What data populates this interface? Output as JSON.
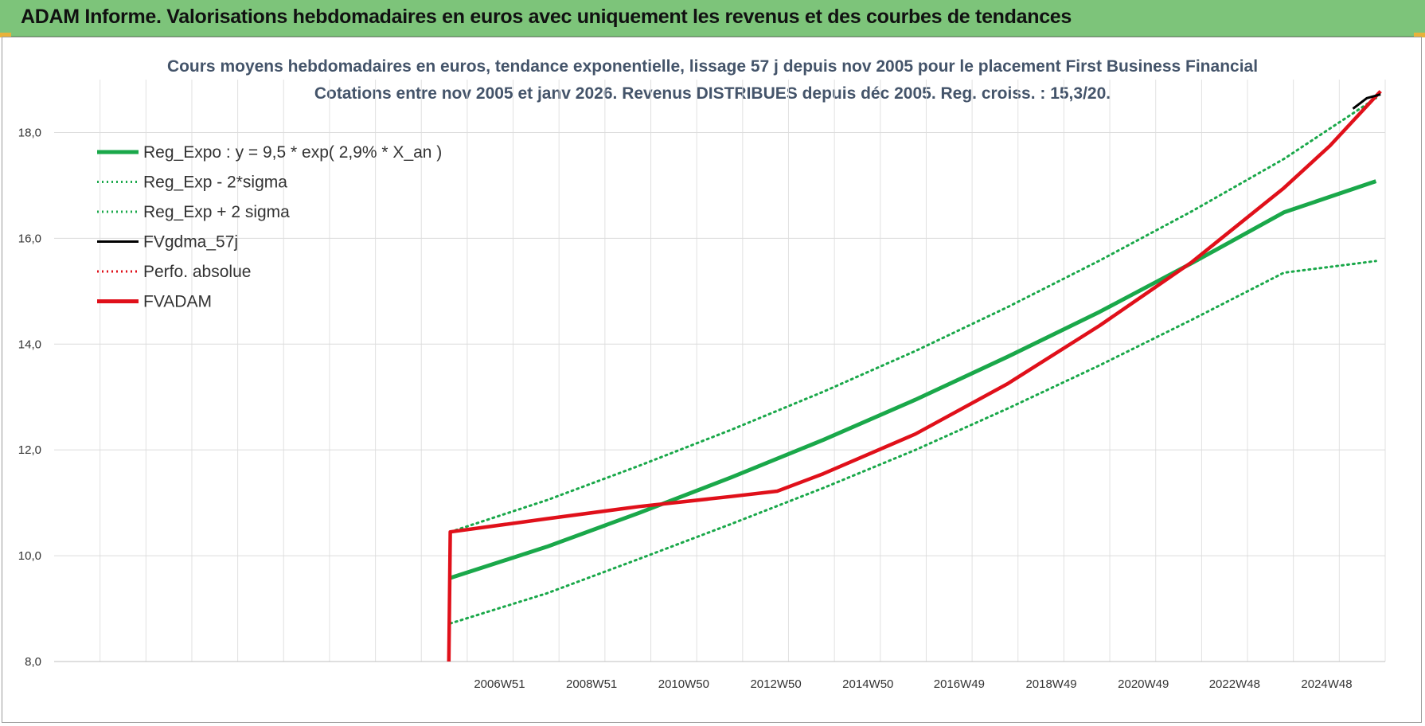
{
  "banner": {
    "title": "ADAM Informe. Valorisations hebdomadaires en euros avec uniquement les revenus et des courbes de tendances"
  },
  "colors": {
    "banner_bg": "#7dc47a",
    "reg_expo": "#1aa84a",
    "sigma_lines": "#1aa84a",
    "fvgdma": "#000000",
    "perfo": "#e0101a",
    "fvadam": "#e0101a",
    "title_text": "#44546a"
  },
  "chart_data": {
    "type": "line",
    "title": "Cours moyens hebdomadaires en euros, tendance exponentielle, lissage 57 j depuis nov 2005  pour le placement First Business Financial",
    "subtitle": "Cotations entre nov 2005 et janv 2026. Revenus DISTRIBUES depuis déc 2005.  Reg. croiss. : 15,3/20.",
    "xlabel": "",
    "ylabel": "",
    "ylim": [
      8.0,
      19.0
    ],
    "xlim": [
      1997.3,
      2026.2
    ],
    "y_ticks": [
      "8,0",
      "10,0",
      "12,0",
      "14,0",
      "16,0",
      "18,0"
    ],
    "y_tick_values": [
      8,
      10,
      12,
      14,
      16,
      18
    ],
    "x_tick_labels": [
      "2006W51",
      "2008W51",
      "2010W50",
      "2012W50",
      "2014W50",
      "2016W49",
      "2018W49",
      "2020W49",
      "2022W48",
      "2024W48"
    ],
    "x_tick_values": [
      2006.97,
      2008.97,
      2010.97,
      2012.97,
      2014.97,
      2016.95,
      2018.95,
      2020.95,
      2022.93,
      2024.93
    ],
    "grid": true,
    "legend_position": "top-left",
    "legend": [
      {
        "label": "Reg_Expo : y = 9,5 * exp( 2,9% *  X_an )",
        "style": "solid-thick",
        "color": "#1aa84a"
      },
      {
        "label": "Reg_Exp - 2*sigma",
        "style": "dotted",
        "color": "#1aa84a"
      },
      {
        "label": "Reg_Exp + 2 sigma",
        "style": "dotted",
        "color": "#1aa84a"
      },
      {
        "label": "FVgdma_57j",
        "style": "solid",
        "color": "#000000"
      },
      {
        "label": "Perfo. absolue",
        "style": "dotted",
        "color": "#e0101a"
      },
      {
        "label": "FVADAM",
        "style": "solid-thick",
        "color": "#e0101a"
      }
    ],
    "series": [
      {
        "name": "Reg_Expo : y = 9,5 * exp( 2,9% *  X_an )",
        "x": [
          2005.9,
          2008,
          2010,
          2012,
          2014,
          2016,
          2018,
          2020,
          2022,
          2024,
          2026
        ],
        "values": [
          9.58,
          10.17,
          10.81,
          11.48,
          12.19,
          12.95,
          13.76,
          14.61,
          15.53,
          16.49,
          17.08
        ]
      },
      {
        "name": "Reg_Exp - 2*sigma",
        "x": [
          2005.9,
          2008,
          2010,
          2012,
          2014,
          2016,
          2018,
          2020,
          2022,
          2024,
          2026
        ],
        "values": [
          8.72,
          9.29,
          9.94,
          10.6,
          11.28,
          12.0,
          12.78,
          13.6,
          14.46,
          15.35,
          15.57
        ]
      },
      {
        "name": "Reg_Exp + 2 sigma",
        "x": [
          2005.9,
          2008,
          2010,
          2012,
          2014,
          2016,
          2018,
          2020,
          2022,
          2024,
          2026
        ],
        "values": [
          10.45,
          11.05,
          11.7,
          12.38,
          13.1,
          13.87,
          14.7,
          15.58,
          16.51,
          17.5,
          18.65
        ]
      },
      {
        "name": "FVgdma_57j",
        "x": [
          2025.5,
          2025.8,
          2026.1
        ],
        "values": [
          18.45,
          18.65,
          18.72
        ]
      },
      {
        "name": "Perfo. absolue",
        "x": [
          2005.9,
          2026.1
        ],
        "values": [
          10.45,
          18.72
        ]
      },
      {
        "name": "FVADAM",
        "x": [
          2005.87,
          2005.9,
          2008,
          2010,
          2012,
          2013,
          2014,
          2016,
          2018,
          2020,
          2021,
          2022,
          2024,
          2025,
          2026.1
        ],
        "values": [
          8.0,
          10.45,
          10.7,
          10.93,
          11.12,
          11.22,
          11.55,
          12.3,
          13.25,
          14.35,
          14.95,
          15.55,
          16.95,
          17.75,
          18.78
        ]
      }
    ]
  }
}
